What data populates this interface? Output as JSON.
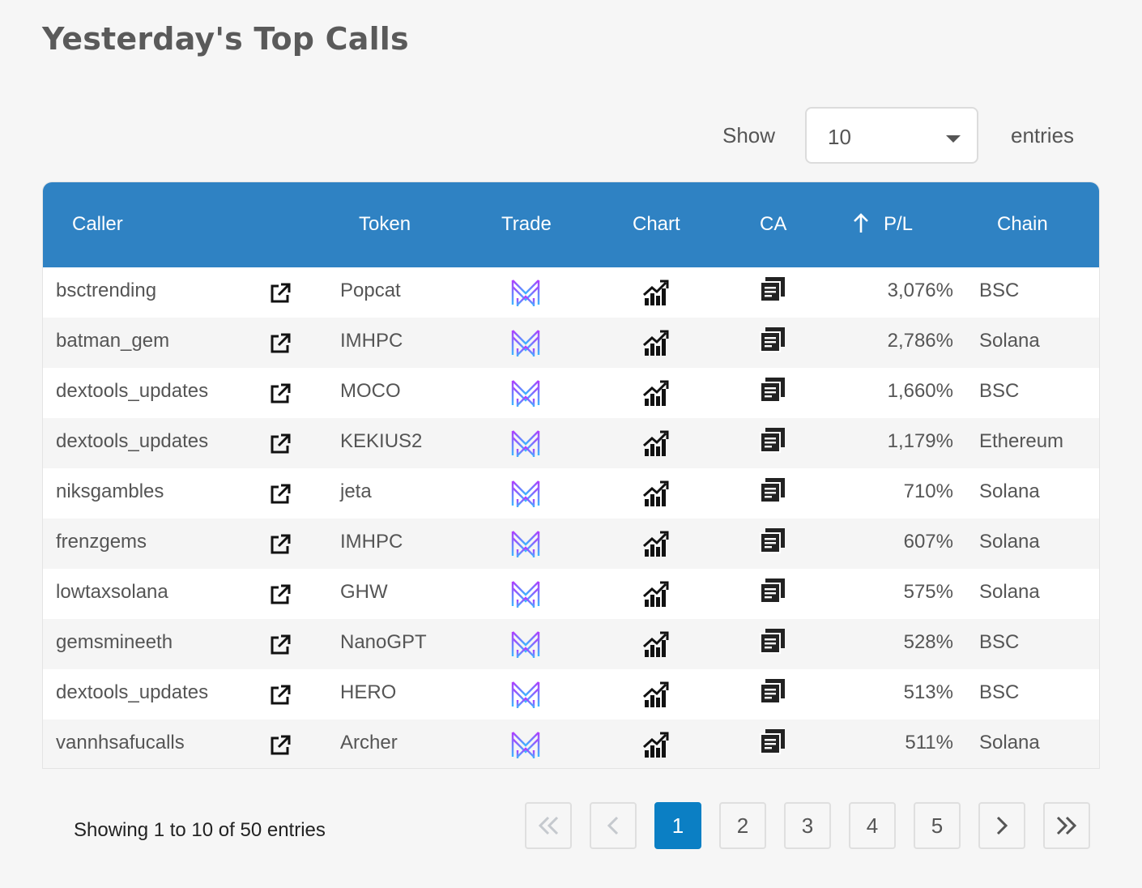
{
  "page": {
    "title": "Yesterday's Top Calls"
  },
  "length_menu": {
    "show_label": "Show",
    "selected": "10",
    "entries_label": "entries"
  },
  "table": {
    "headers": {
      "caller": "Caller",
      "token": "Token",
      "trade": "Trade",
      "chart": "Chart",
      "ca": "CA",
      "sort_icon": "arrow-up-icon",
      "pl": "P/L",
      "chain": "Chain"
    },
    "rows": [
      {
        "caller": "bsctrending",
        "token": "Popcat",
        "pl": "3,076%",
        "chain": "BSC"
      },
      {
        "caller": "batman_gem",
        "token": "IMHPC",
        "pl": "2,786%",
        "chain": "Solana"
      },
      {
        "caller": "dextools_updates",
        "token": "MOCO",
        "pl": "1,660%",
        "chain": "BSC"
      },
      {
        "caller": "dextools_updates",
        "token": "KEKIUS2",
        "pl": "1,179%",
        "chain": "Ethereum"
      },
      {
        "caller": "niksgambles",
        "token": "jeta",
        "pl": "710%",
        "chain": "Solana"
      },
      {
        "caller": "frenzgems",
        "token": "IMHPC",
        "pl": "607%",
        "chain": "Solana"
      },
      {
        "caller": "lowtaxsolana",
        "token": "GHW",
        "pl": "575%",
        "chain": "Solana"
      },
      {
        "caller": "gemsmineeth",
        "token": "NanoGPT",
        "pl": "528%",
        "chain": "BSC"
      },
      {
        "caller": "dextools_updates",
        "token": "HERO",
        "pl": "513%",
        "chain": "BSC"
      },
      {
        "caller": "vannhsafucalls",
        "token": "Archer",
        "pl": "511%",
        "chain": "Solana"
      }
    ]
  },
  "icons": {
    "external_link": "external-link-icon",
    "trade": "trade-logo-icon",
    "chart": "chart-growth-icon",
    "ca": "copy-icon"
  },
  "pagination": {
    "info": "Showing 1 to 10 of 50 entries",
    "first": "first-page-icon",
    "prev": "prev-page-icon",
    "pages": [
      "1",
      "2",
      "3",
      "4",
      "5"
    ],
    "active_page": "1",
    "next": "next-page-icon",
    "last": "last-page-icon"
  },
  "colors": {
    "header_bg": "#2f82c3",
    "active_page_bg": "#0b7fc4",
    "trade_icon_gradient_top": "#b23cff",
    "trade_icon_gradient_bottom": "#3cb7ff"
  }
}
